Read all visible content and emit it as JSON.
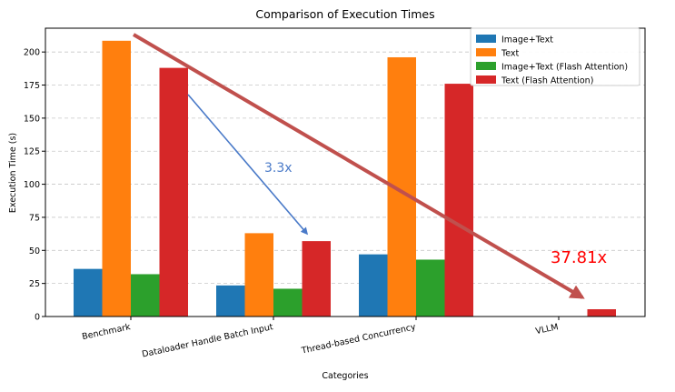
{
  "chart_data": {
    "type": "bar",
    "title": "Comparison of Execution Times",
    "xlabel": "Categories",
    "ylabel": "Execution Time (s)",
    "ylim": [
      0,
      218
    ],
    "yticks": [
      0,
      25,
      50,
      75,
      100,
      125,
      150,
      175,
      200
    ],
    "grid": true,
    "legend_position": "top-right",
    "categories": [
      "Benchmark",
      "Dataloader Handle Batch Input",
      "Thread-based Concurrency",
      "VLLM"
    ],
    "series": [
      {
        "name": "Image+Text",
        "color": "#1f77b4",
        "values": [
          36,
          23.5,
          47,
          null
        ]
      },
      {
        "name": "Text",
        "color": "#ff7f0e",
        "values": [
          208.5,
          63,
          196,
          null
        ]
      },
      {
        "name": "Image+Text (Flash Attention)",
        "color": "#2ca02c",
        "values": [
          32,
          21,
          43,
          null
        ]
      },
      {
        "name": "Text (Flash Attention)",
        "color": "#d62728",
        "values": [
          188,
          57,
          176,
          5.5
        ]
      }
    ],
    "annotations": [
      {
        "text": "3.3x",
        "color": "#4a7ac8"
      },
      {
        "text": "37.81x",
        "color": "#ff0000"
      }
    ]
  }
}
